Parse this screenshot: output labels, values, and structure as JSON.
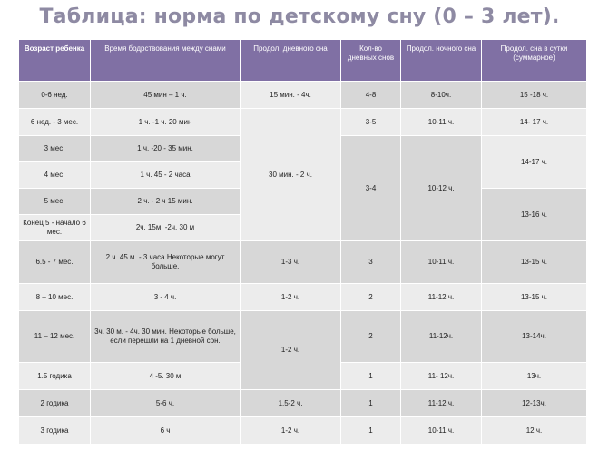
{
  "title": "Таблица: норма по детскому сну (0 – 3 лет).",
  "columns": [
    "Возраст ребенка",
    "Время бодрствования между снами",
    "Продол. дневного сна",
    "Кол-во дневных снов",
    "Продол. ночного сна",
    "Продол. сна в сутки (суммарное)"
  ],
  "age": [
    "0-6 нед.",
    "6 нед. - 3 мес.",
    "3 мес.",
    "4 мес.",
    "5 мес.",
    "Конец 5 - начало 6 мес.",
    "6.5 - 7 мес.",
    "8 – 10 мес.",
    "11 – 12 мес.",
    "1.5 годика",
    "2 годика",
    "3 годика"
  ],
  "wake": [
    "45 мин – 1 ч.",
    "1 ч. -1 ч. 20 мин",
    "1 ч. -20 - 35 мин.",
    "1 ч. 45 - 2 часа",
    "2 ч. - 2 ч 15 мин.",
    "2ч. 15м. -2ч. 30 м",
    "2 ч. 45 м. - 3 часа Некоторые могут больше.",
    "3 - 4 ч.",
    "3ч. 30 м. - 4ч. 30 мин. Некоторые больше, если перешли на 1 дневной сон.",
    "4 -5. 30 м",
    "5-6 ч.",
    "6 ч"
  ],
  "daysleep": [
    "15 мин. - 4ч.",
    "30 мин. - 2 ч.",
    "1-3 ч.",
    "1-2 ч.",
    "1-2 ч.",
    "1.5-2 ч.",
    "1-2 ч."
  ],
  "naps": [
    "4-8",
    "3-5",
    "3-4",
    "3",
    "2",
    "2",
    "1",
    "1",
    "1"
  ],
  "night": [
    "8-10ч.",
    "10-11 ч.",
    "10-12 ч.",
    "10-11 ч.",
    "11-12 ч.",
    "11-12ч.",
    "11- 12ч.",
    "11-12 ч.",
    "10-11 ч."
  ],
  "total": [
    "15 -18 ч.",
    "14- 17 ч.",
    "14-17 ч.",
    "13-16 ч.",
    "13-15 ч.",
    "13-15 ч.",
    "13-14ч.",
    "13ч.",
    "12-13ч.",
    "12 ч."
  ]
}
